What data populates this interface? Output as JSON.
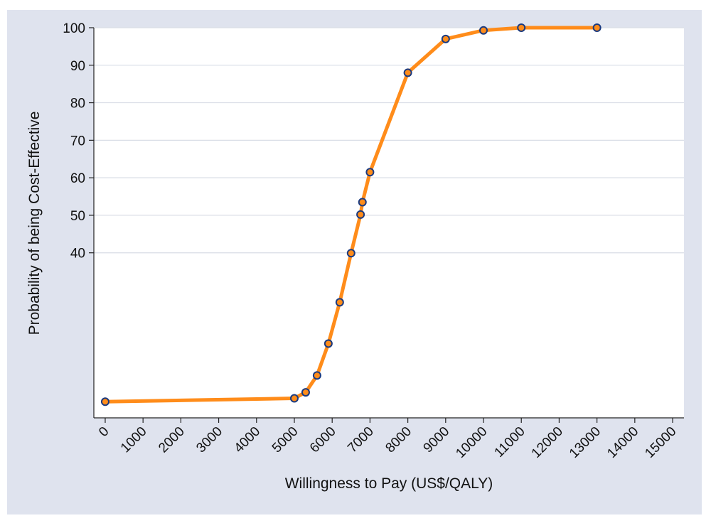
{
  "chart_data": {
    "type": "line",
    "title": "",
    "xlabel": "Willingness to Pay (US$/QALY)",
    "ylabel": "Probability of being Cost-Effective",
    "xlim": [
      -300,
      15300
    ],
    "ylim": [
      -4,
      100
    ],
    "x_ticks": [
      0,
      1000,
      2000,
      3000,
      4000,
      5000,
      6000,
      7000,
      8000,
      9000,
      10000,
      11000,
      12000,
      13000,
      14000,
      15000
    ],
    "y_ticks": [
      40,
      50,
      60,
      70,
      80,
      90,
      100
    ],
    "grid": true,
    "series": [
      {
        "x": [
          0,
          5000,
          5300,
          5600,
          5900,
          6200,
          6500,
          6750,
          6800,
          7000,
          8000,
          9000,
          10000,
          11000,
          13000
        ],
        "y": [
          0.3,
          1.2,
          2.8,
          7.3,
          15.8,
          26.8,
          39.9,
          50.2,
          53.5,
          61.5,
          88,
          97,
          99.3,
          100,
          100
        ],
        "color": "#ff8c1a",
        "marker_color": "#1a3a80"
      }
    ]
  }
}
